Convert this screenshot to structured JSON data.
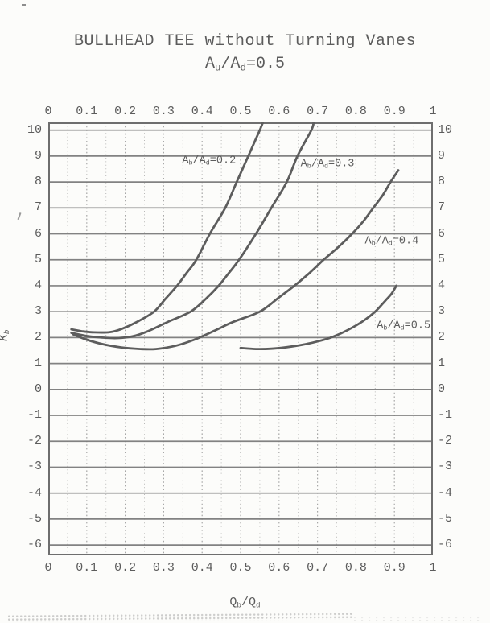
{
  "colors": {
    "background": "#fcfcfa",
    "ink": "#5c5c5c",
    "frame": "#6e6e6e",
    "grid_major": "#7c7c7c",
    "grid_minor": "#a3a3a3",
    "curve": "#5d5d5d"
  },
  "chart_data": {
    "type": "line",
    "title": "BULLHEAD TEE without Turning Vanes",
    "subtitle": "Au/Ad=0.5",
    "subtitle_parts": [
      "A",
      "u",
      "/A",
      "d",
      "=0.5"
    ],
    "xlabel": "Qb/Qd",
    "xlabel_parts": [
      "Q",
      "b",
      "/Q",
      "d"
    ],
    "ylabel": "Kb",
    "ylabel_parts": [
      "K",
      "b"
    ],
    "xlim": [
      0,
      1
    ],
    "ylim": [
      -6.4,
      10.3
    ],
    "tick_label_sides": [
      "top",
      "bottom",
      "left",
      "right"
    ],
    "x_ticks": {
      "values": [
        0,
        0.1,
        0.2,
        0.3,
        0.4,
        0.5,
        0.6,
        0.7,
        0.8,
        0.9,
        1
      ],
      "labels": [
        "0",
        "0.1",
        "0.2",
        "0.3",
        "0.4",
        "0.5",
        "0.6",
        "0.7",
        "0.8",
        "0.9",
        "1"
      ]
    },
    "y_ticks": {
      "values": [
        10,
        9,
        8,
        7,
        6,
        5,
        4,
        3,
        2,
        1,
        0,
        -1,
        -2,
        -3,
        -4,
        -5,
        -6
      ],
      "labels": [
        "10",
        "9",
        "8",
        "7",
        "6",
        "5",
        "4",
        "3",
        "2",
        "1",
        "0",
        "-1",
        "-2",
        "-3",
        "-4",
        "-5",
        "-6"
      ]
    },
    "grid": {
      "horizontal": "solid lines at every integer K from -6 to 10",
      "vertical": "dotted lines every 0.05 in Q",
      "x_minor_step": 0.05,
      "x_major_step": 0.1
    },
    "curve_label_parts": [
      "A",
      "b",
      "/A",
      "d",
      "="
    ],
    "series": [
      {
        "name": "Ab/Ad=0.2",
        "ratio": "0.2",
        "label_anchor": {
          "q": 0.418,
          "k": 8.8
        },
        "points": [
          [
            0.06,
            2.32
          ],
          [
            0.09,
            2.24
          ],
          [
            0.12,
            2.2
          ],
          [
            0.16,
            2.21
          ],
          [
            0.19,
            2.33
          ],
          [
            0.23,
            2.6
          ],
          [
            0.275,
            3.0
          ],
          [
            0.305,
            3.5
          ],
          [
            0.335,
            4.0
          ],
          [
            0.36,
            4.5
          ],
          [
            0.385,
            5.0
          ],
          [
            0.42,
            6.0
          ],
          [
            0.46,
            7.0
          ],
          [
            0.49,
            8.0
          ],
          [
            0.52,
            9.0
          ],
          [
            0.55,
            10.0
          ],
          [
            0.558,
            10.3
          ]
        ]
      },
      {
        "name": "Ab/Ad=0.3",
        "ratio": "0.3",
        "label_anchor": {
          "q": 0.726,
          "k": 8.7
        },
        "points": [
          [
            0.06,
            2.18
          ],
          [
            0.1,
            2.06
          ],
          [
            0.14,
            2.0
          ],
          [
            0.18,
            1.98
          ],
          [
            0.22,
            2.05
          ],
          [
            0.26,
            2.25
          ],
          [
            0.31,
            2.6
          ],
          [
            0.37,
            3.0
          ],
          [
            0.41,
            3.5
          ],
          [
            0.443,
            4.0
          ],
          [
            0.47,
            4.5
          ],
          [
            0.496,
            5.0
          ],
          [
            0.54,
            6.0
          ],
          [
            0.58,
            7.0
          ],
          [
            0.62,
            8.0
          ],
          [
            0.648,
            9.0
          ],
          [
            0.684,
            10.0
          ],
          [
            0.69,
            10.3
          ]
        ]
      },
      {
        "name": "Ab/Ad=0.4",
        "ratio": "0.4",
        "label_anchor": {
          "q": 0.893,
          "k": 5.7
        },
        "points": [
          [
            0.065,
            2.12
          ],
          [
            0.1,
            1.92
          ],
          [
            0.14,
            1.75
          ],
          [
            0.19,
            1.62
          ],
          [
            0.24,
            1.56
          ],
          [
            0.28,
            1.56
          ],
          [
            0.33,
            1.68
          ],
          [
            0.38,
            1.92
          ],
          [
            0.43,
            2.25
          ],
          [
            0.48,
            2.6
          ],
          [
            0.55,
            3.0
          ],
          [
            0.6,
            3.55
          ],
          [
            0.64,
            4.0
          ],
          [
            0.68,
            4.5
          ],
          [
            0.716,
            5.0
          ],
          [
            0.755,
            5.5
          ],
          [
            0.79,
            6.0
          ],
          [
            0.82,
            6.5
          ],
          [
            0.845,
            7.0
          ],
          [
            0.87,
            7.5
          ],
          [
            0.89,
            8.0
          ],
          [
            0.91,
            8.45
          ]
        ]
      },
      {
        "name": "Ab/Ad=0.5",
        "ratio": "0.5",
        "label_anchor": {
          "q": 0.924,
          "k": 2.45
        },
        "points": [
          [
            0.5,
            1.6
          ],
          [
            0.54,
            1.56
          ],
          [
            0.58,
            1.57
          ],
          [
            0.62,
            1.63
          ],
          [
            0.66,
            1.72
          ],
          [
            0.7,
            1.85
          ],
          [
            0.74,
            2.03
          ],
          [
            0.78,
            2.3
          ],
          [
            0.82,
            2.65
          ],
          [
            0.85,
            3.0
          ],
          [
            0.875,
            3.4
          ],
          [
            0.893,
            3.7
          ],
          [
            0.905,
            4.0
          ]
        ]
      }
    ]
  }
}
